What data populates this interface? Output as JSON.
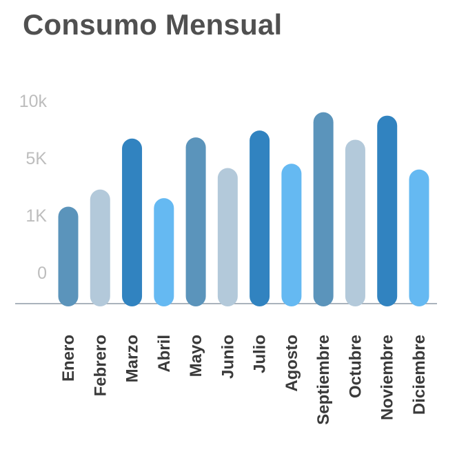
{
  "chart_data": {
    "type": "bar",
    "title": "Consumo Mensual",
    "xlabel": "",
    "ylabel": "",
    "y_ticks": [
      {
        "label": "0",
        "value": 0
      },
      {
        "label": "1K",
        "value": 1000
      },
      {
        "label": "5K",
        "value": 5000
      },
      {
        "label": "10k",
        "value": 10000
      }
    ],
    "ylim": [
      0,
      10000
    ],
    "grid": false,
    "categories": [
      "Enero",
      "Febrero",
      "Marzo",
      "Abril",
      "Mayo",
      "Junio",
      "Julio",
      "Agosto",
      "Septiembre",
      "Octubre",
      "Noviembre",
      "Diciembre"
    ],
    "values": [
      1600,
      2800,
      6700,
      2200,
      6800,
      4300,
      7400,
      4600,
      9000,
      6600,
      8700,
      4200
    ],
    "bar_colors": [
      "#5b94bb",
      "#b3c9da",
      "#3183c0",
      "#65b9f2",
      "#5b94bb",
      "#b3c9da",
      "#3183c0",
      "#65b9f2",
      "#5b94bb",
      "#b3c9da",
      "#3183c0",
      "#65b9f2"
    ]
  }
}
